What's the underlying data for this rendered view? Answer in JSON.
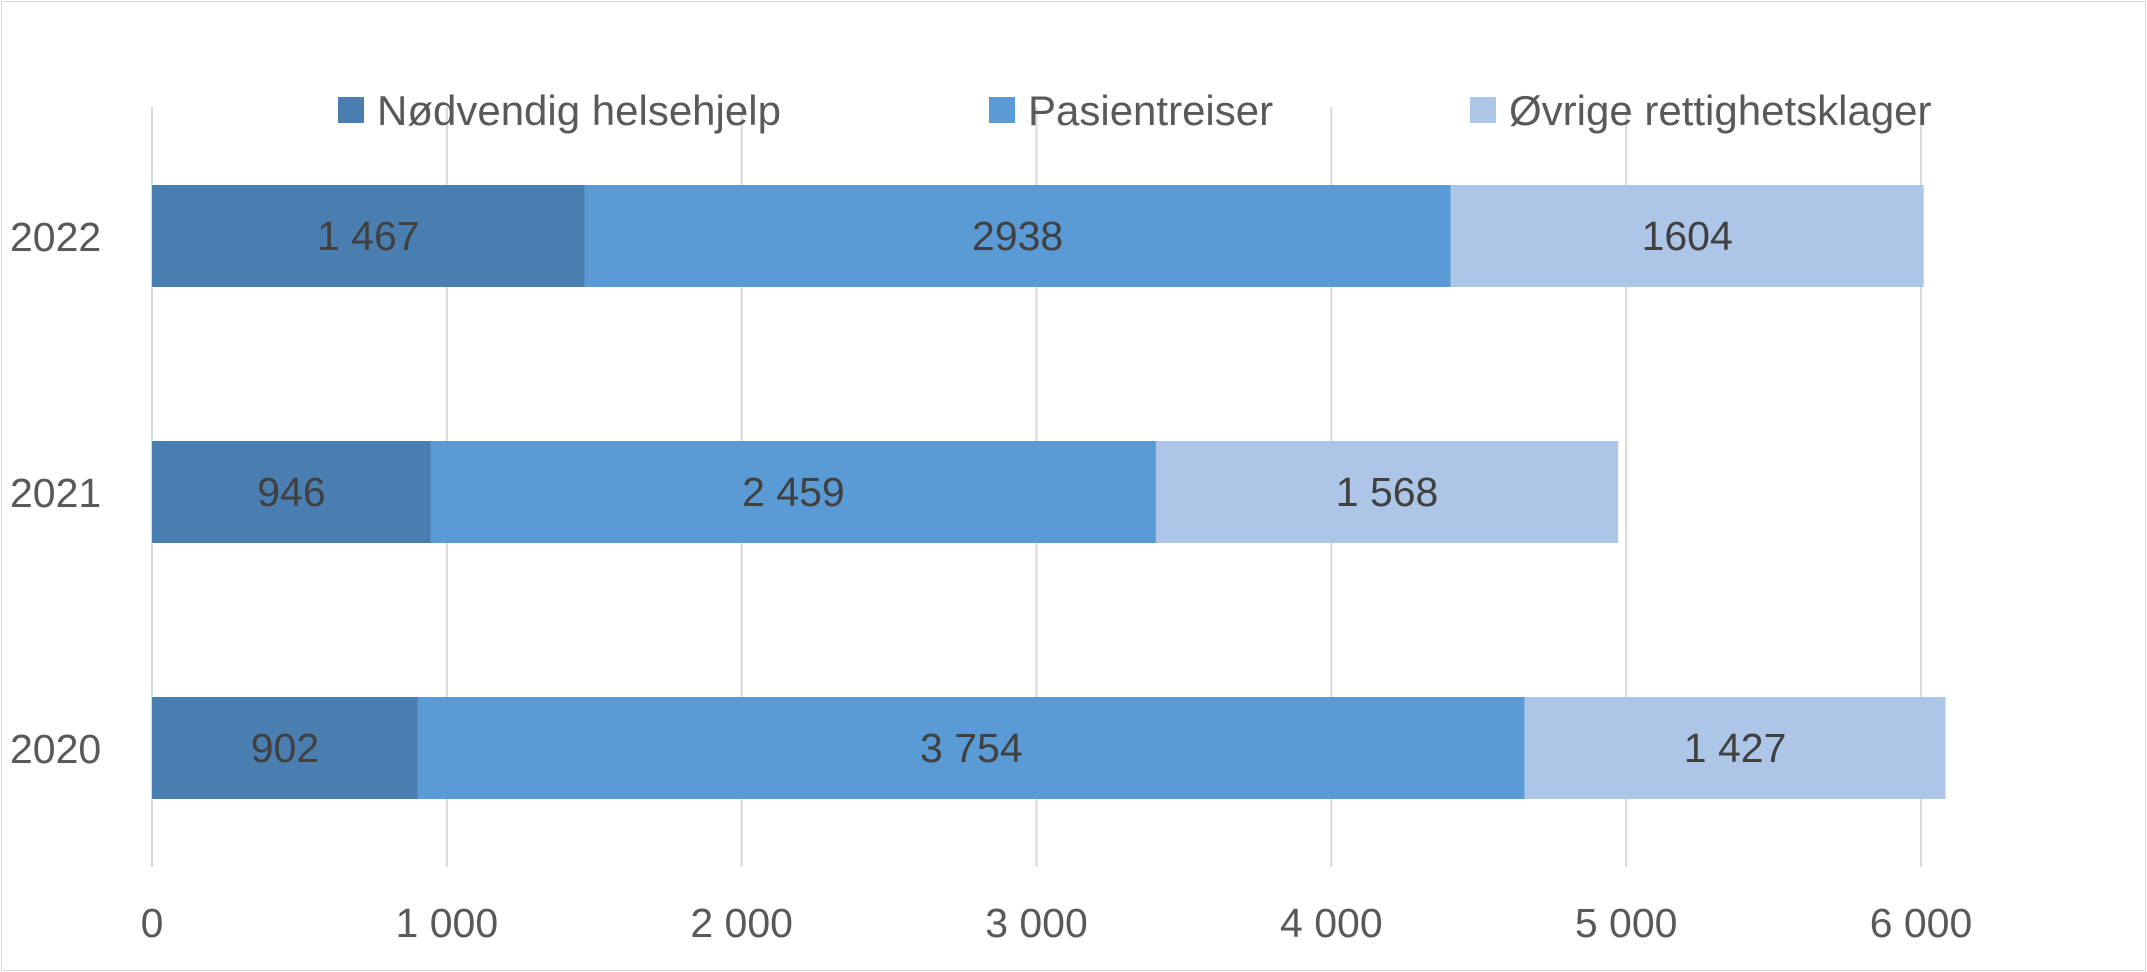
{
  "chart_data": {
    "type": "bar",
    "orientation": "horizontal",
    "stacked": true,
    "title": "",
    "xlabel": "",
    "ylabel": "",
    "xlim": [
      0,
      6000
    ],
    "x_ticks": [
      {
        "value": 0,
        "label": "0"
      },
      {
        "value": 1000,
        "label": "1 000"
      },
      {
        "value": 2000,
        "label": "2 000"
      },
      {
        "value": 3000,
        "label": "3 000"
      },
      {
        "value": 4000,
        "label": "4 000"
      },
      {
        "value": 5000,
        "label": "5 000"
      },
      {
        "value": 6000,
        "label": "6 000"
      }
    ],
    "grid": "vertical",
    "legend_position": "top",
    "categories": [
      "2022",
      "2021",
      "2020"
    ],
    "series": [
      {
        "name": "Nødvendig helsehjelp",
        "color": "#4a7eb0",
        "values": [
          1467,
          946,
          902
        ],
        "labels": [
          "1 467",
          "946",
          "902"
        ]
      },
      {
        "name": "Pasientreiser",
        "color": "#5b9bd5",
        "values": [
          2938,
          2459,
          3754
        ],
        "labels": [
          "2938",
          "2 459",
          "3 754"
        ]
      },
      {
        "name": "Øvrige rettighetsklager",
        "color": "#adc5e7",
        "values": [
          1604,
          1568,
          1427
        ],
        "labels": [
          "1604",
          "1 568",
          "1 427"
        ]
      }
    ]
  }
}
